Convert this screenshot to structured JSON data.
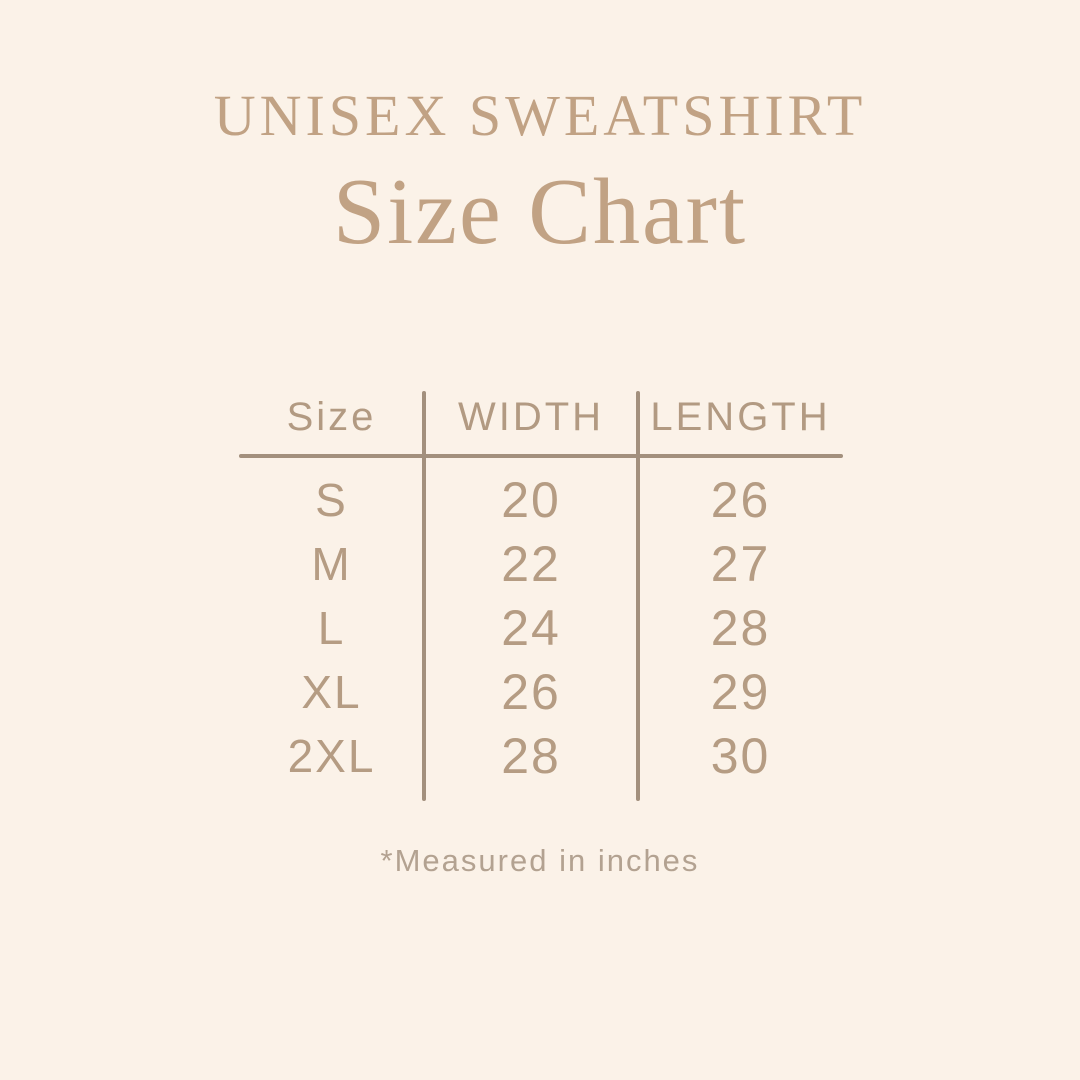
{
  "page": {
    "background_color": "#fbf2e8",
    "title_color": "#c1a284",
    "table_text_color": "#b59c83",
    "line_color": "#a3907d",
    "footnote_color": "#b3a291"
  },
  "header": {
    "title": "UNISEX SWEATSHIRT",
    "subtitle": "Size Chart"
  },
  "chart_data": {
    "type": "table",
    "title": "UNISEX SWEATSHIRT Size Chart",
    "columns": [
      "Size",
      "WIDTH",
      "LENGTH"
    ],
    "rows": [
      [
        "S",
        "20",
        "26"
      ],
      [
        "M",
        "22",
        "27"
      ],
      [
        "L",
        "24",
        "28"
      ],
      [
        "XL",
        "26",
        "29"
      ],
      [
        "2XL",
        "28",
        "30"
      ]
    ],
    "footnote": "*Measured in inches"
  }
}
